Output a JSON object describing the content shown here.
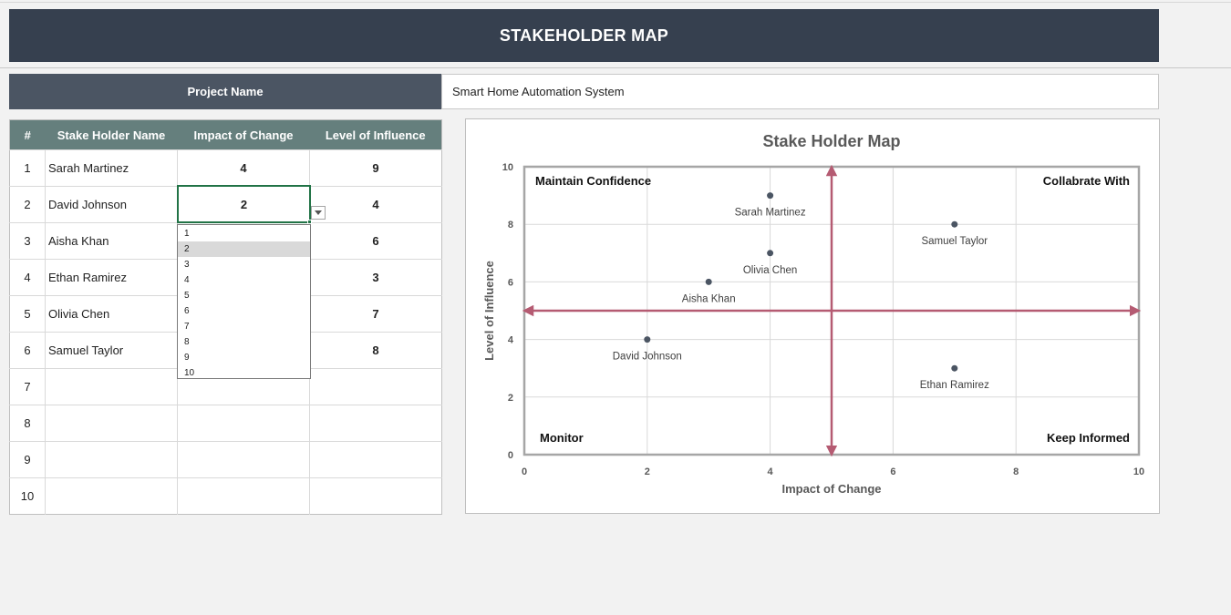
{
  "header": {
    "title": "STAKEHOLDER MAP"
  },
  "project": {
    "label": "Project Name",
    "value": "Smart Home Automation System"
  },
  "table": {
    "headers": [
      "#",
      "Stake Holder Name",
      "Impact of Change",
      "Level of Influence"
    ],
    "rows": [
      {
        "num": "1",
        "name": "Sarah Martinez",
        "impact": "4",
        "influence": "9"
      },
      {
        "num": "2",
        "name": "David Johnson",
        "impact": "2",
        "influence": "4"
      },
      {
        "num": "3",
        "name": "Aisha Khan",
        "impact": "",
        "influence": "6"
      },
      {
        "num": "4",
        "name": "Ethan Ramirez",
        "impact": "",
        "influence": "3"
      },
      {
        "num": "5",
        "name": "Olivia Chen",
        "impact": "",
        "influence": "7"
      },
      {
        "num": "6",
        "name": "Samuel Taylor",
        "impact": "",
        "influence": "8"
      },
      {
        "num": "7",
        "name": "",
        "impact": "",
        "influence": ""
      },
      {
        "num": "8",
        "name": "",
        "impact": "",
        "influence": ""
      },
      {
        "num": "9",
        "name": "",
        "impact": "",
        "influence": ""
      },
      {
        "num": "10",
        "name": "",
        "impact": "",
        "influence": ""
      }
    ]
  },
  "active_cell": {
    "value": "2"
  },
  "dropdown": {
    "options": [
      "1",
      "2",
      "3",
      "4",
      "5",
      "6",
      "7",
      "8",
      "9",
      "10"
    ],
    "selected": "2"
  },
  "chart_data": {
    "type": "scatter",
    "title": "Stake Holder Map",
    "xlabel": "Impact of Change",
    "ylabel": "Level of Influence",
    "xlim": [
      0,
      10
    ],
    "ylim": [
      0,
      10
    ],
    "xticks": [
      0,
      2,
      4,
      6,
      8,
      10
    ],
    "yticks": [
      0,
      2,
      4,
      6,
      8,
      10
    ],
    "grid": true,
    "points": [
      {
        "label": "Sarah Martinez",
        "x": 4,
        "y": 9
      },
      {
        "label": "David Johnson",
        "x": 2,
        "y": 4
      },
      {
        "label": "Aisha Khan",
        "x": 3,
        "y": 6
      },
      {
        "label": "Ethan Ramirez",
        "x": 7,
        "y": 3
      },
      {
        "label": "Olivia Chen",
        "x": 4,
        "y": 7
      },
      {
        "label": "Samuel Taylor",
        "x": 7,
        "y": 8
      }
    ],
    "divider_x": 5,
    "divider_y": 5,
    "quadrants": {
      "top_left": "Maintain Confidence",
      "top_right": "Collabrate With",
      "bottom_left": "Monitor",
      "bottom_right": "Keep Informed"
    },
    "colors": {
      "point": "#4b5563",
      "divider": "#b55b72",
      "grid": "#d9d9d9",
      "frame": "#a6a6a6"
    }
  }
}
